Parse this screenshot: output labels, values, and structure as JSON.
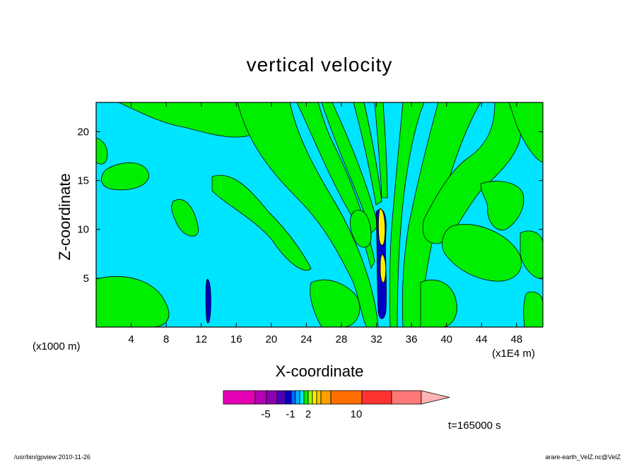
{
  "title": "vertical velocity",
  "footer": {
    "left": "/usr/bin/gpview   2010-11-26",
    "right": "arare-earth_VelZ.nc@VelZ"
  },
  "time_label": "t=165000 s",
  "x_unit_left": "(x1000 m)",
  "x_unit_right": "(x1E4 m)",
  "colors": {
    "negative_small": "#00e5ff",
    "positive_small": "#00ee00",
    "contour": "#000000",
    "strong_up": "#ffee00",
    "strong_down": "#0000c8"
  },
  "chart_data": {
    "type": "heatmap",
    "title": "vertical velocity",
    "xlabel": "X-coordinate",
    "ylabel": "Z-coordinate",
    "xlim": [
      0,
      51
    ],
    "ylim": [
      0,
      23
    ],
    "x_ticks": [
      4,
      8,
      12,
      16,
      20,
      24,
      28,
      32,
      36,
      40,
      44,
      48
    ],
    "y_ticks": [
      5,
      10,
      15,
      20
    ],
    "colorbar": {
      "colors": [
        "#e600b4",
        "#b400b4",
        "#8c00b4",
        "#5000b4",
        "#0000c8",
        "#0064ff",
        "#00b4ff",
        "#00e5ff",
        "#00ee00",
        "#96ff00",
        "#ffee00",
        "#ffc800",
        "#ffa000",
        "#ff6e00",
        "#ff3232",
        "#ff7878",
        "#ffb4b4"
      ],
      "tick_labels": [
        "-5",
        "-1",
        "2",
        "10"
      ]
    }
  }
}
